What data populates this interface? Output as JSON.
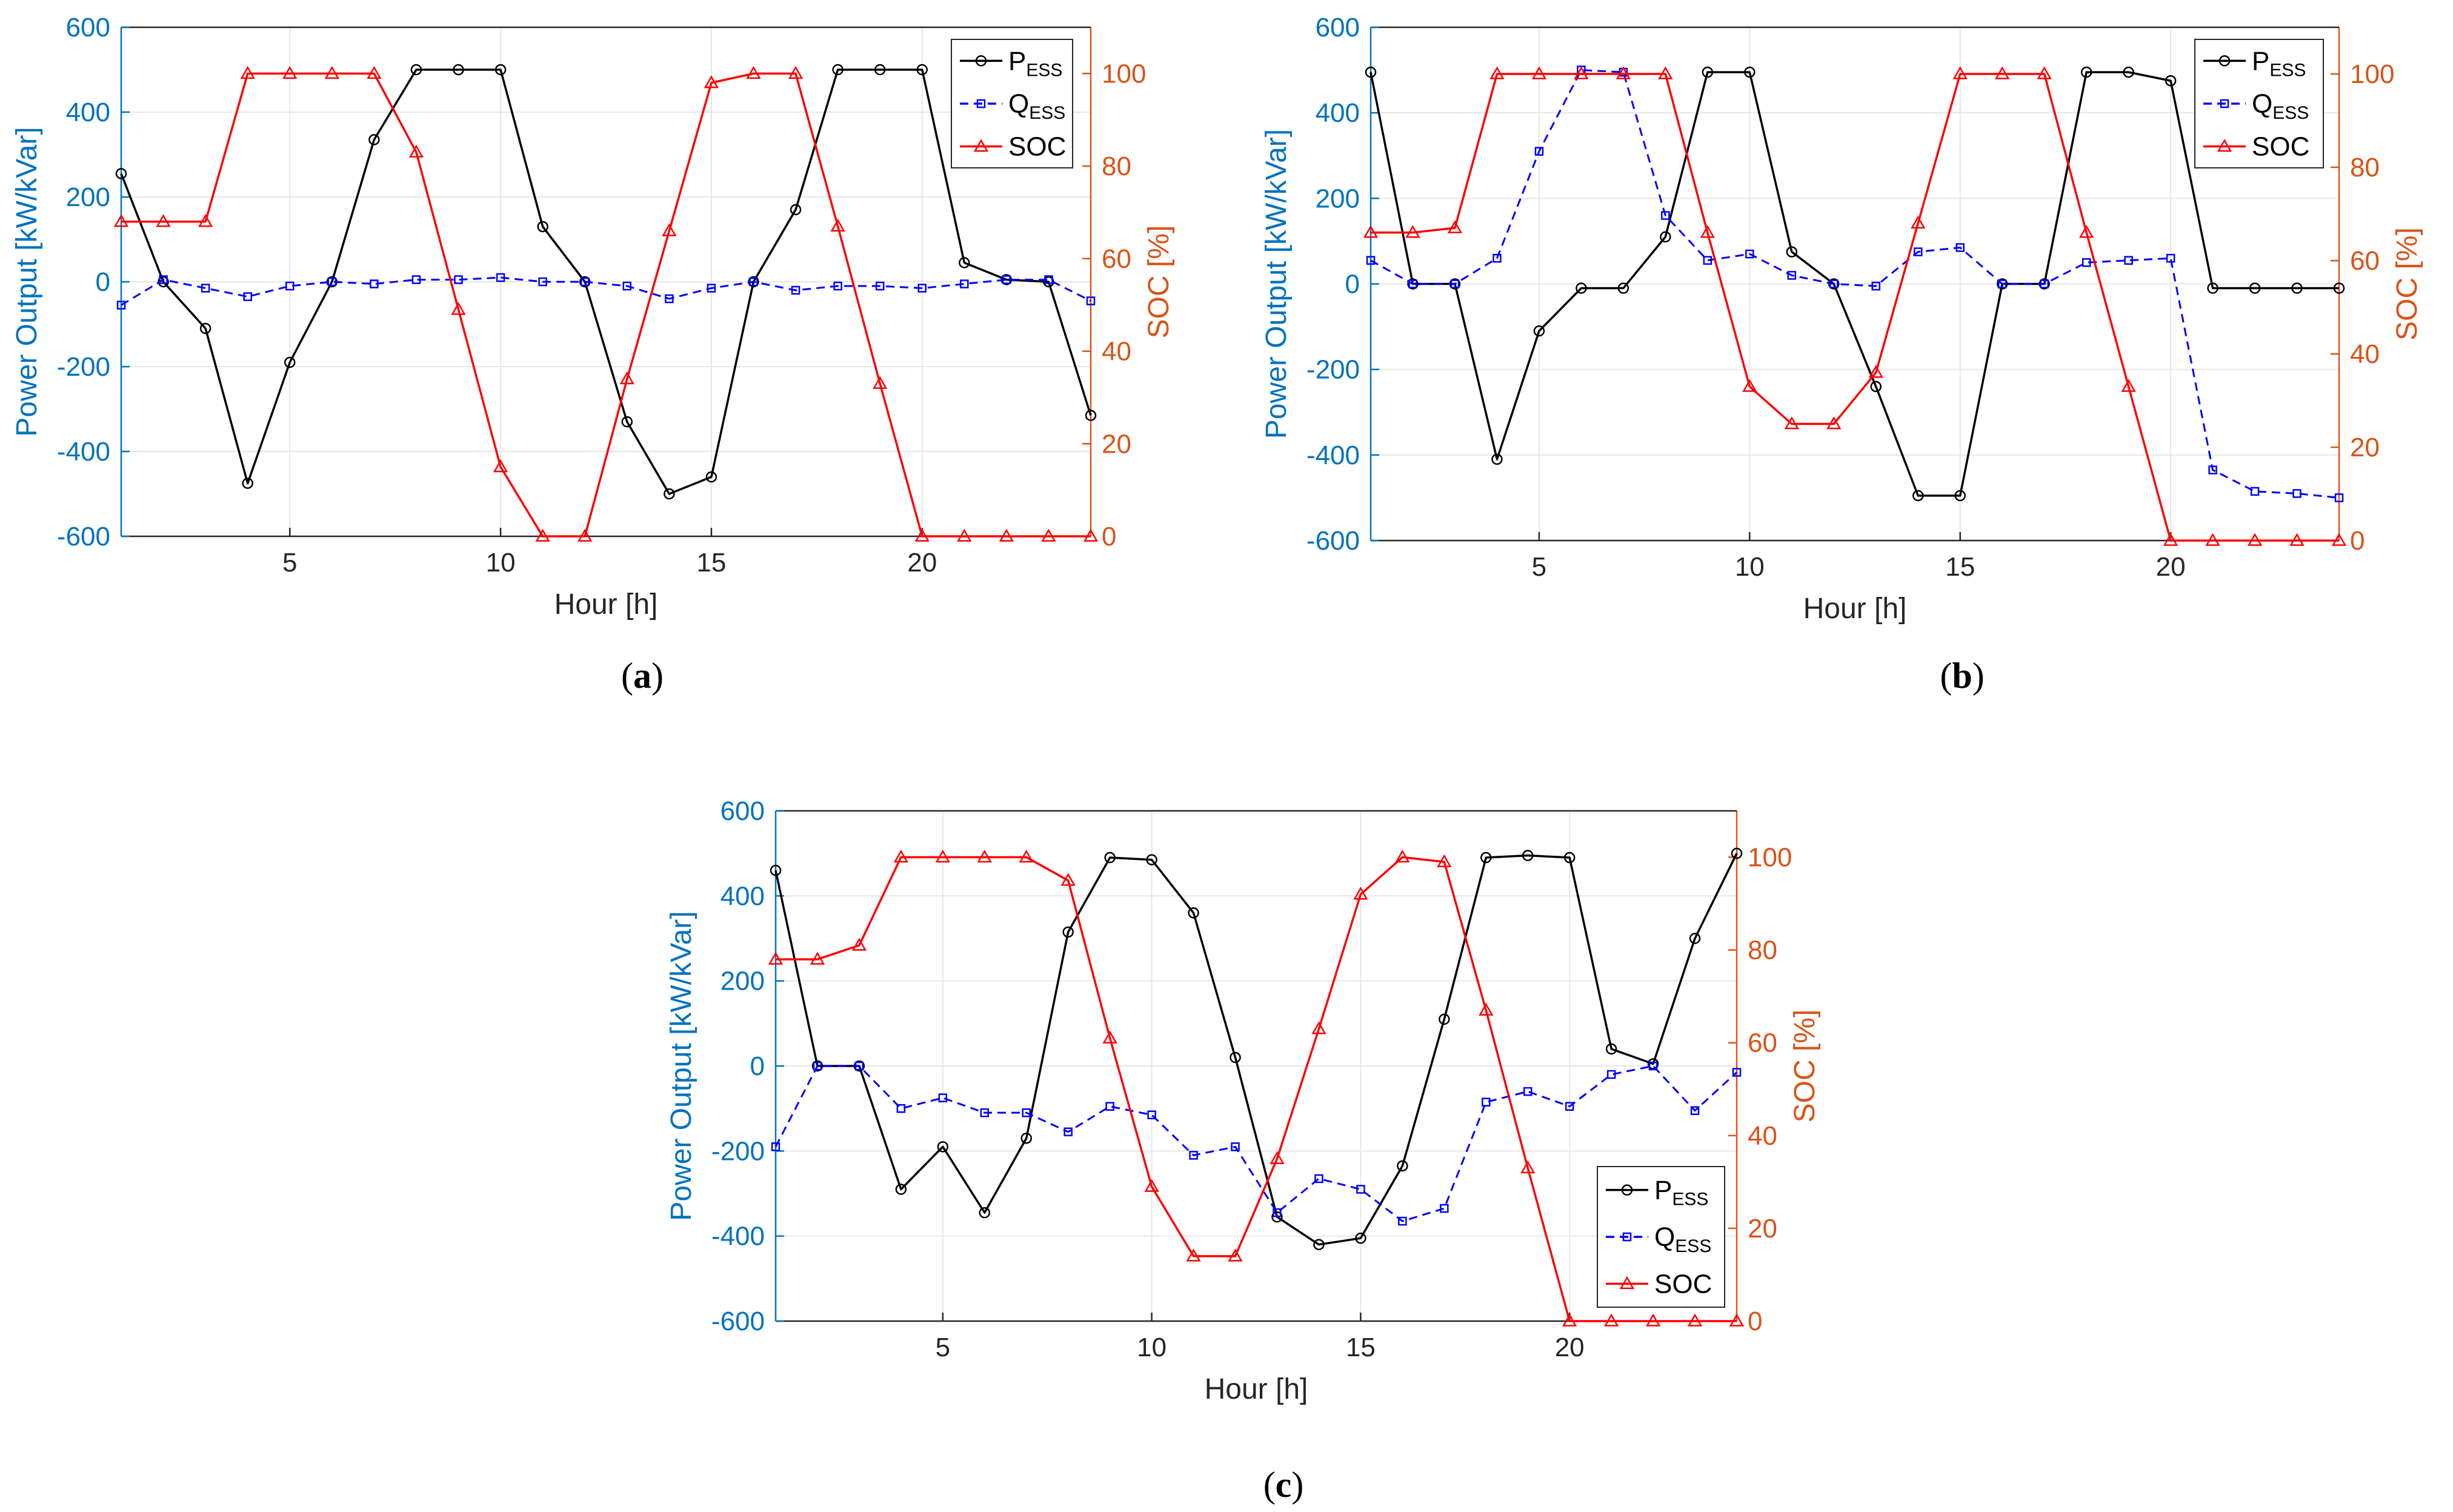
{
  "chart_data": [
    {
      "type": "line",
      "caption": "a",
      "xlabel": "Hour [h]",
      "ylabel_left": "Power Output [kW/kVar]",
      "ylabel_right": "SOC [%]",
      "xlim": [
        1,
        24
      ],
      "ylim_left": [
        -600,
        600
      ],
      "ylim_right": [
        0,
        110
      ],
      "x_ticks": [
        5,
        10,
        15,
        20
      ],
      "y_ticks_left": [
        -600,
        -400,
        -200,
        0,
        200,
        400,
        600
      ],
      "y_ticks_right": [
        0,
        20,
        40,
        60,
        80,
        100
      ],
      "grid": true,
      "legend_position": "top-right",
      "x": [
        1,
        2,
        3,
        4,
        5,
        6,
        7,
        8,
        9,
        10,
        11,
        12,
        13,
        14,
        15,
        16,
        17,
        18,
        19,
        20,
        21,
        22,
        23,
        24
      ],
      "series": [
        {
          "name": "P",
          "name_sub": "ESS",
          "axis": "left",
          "color": "#000000",
          "marker": "circle",
          "dash": "solid",
          "values": [
            255,
            0,
            -110,
            -475,
            -190,
            0,
            335,
            500,
            500,
            500,
            130,
            0,
            -330,
            -500,
            -460,
            0,
            170,
            500,
            500,
            500,
            45,
            5,
            0,
            -315
          ]
        },
        {
          "name": "Q",
          "name_sub": "ESS",
          "axis": "left",
          "color": "#0000FF",
          "marker": "square",
          "dash": "dashed",
          "values": [
            -55,
            5,
            -15,
            -35,
            -10,
            0,
            -5,
            5,
            5,
            10,
            0,
            0,
            -10,
            -40,
            -15,
            0,
            -20,
            -10,
            -10,
            -15,
            -5,
            5,
            5,
            -45
          ]
        },
        {
          "name": "SOC",
          "axis": "right",
          "color": "#FF0000",
          "marker": "triangle",
          "dash": "solid",
          "values": [
            68,
            68,
            68,
            100,
            100,
            100,
            100,
            83,
            49,
            15,
            0,
            0,
            34,
            66,
            98,
            100,
            100,
            67,
            33,
            0,
            0,
            0,
            0,
            0
          ]
        }
      ]
    },
    {
      "type": "line",
      "caption": "b",
      "xlabel": "Hour [h]",
      "ylabel_left": "Power Output [kW/kVar]",
      "ylabel_right": "SOC [%]",
      "xlim": [
        1,
        24
      ],
      "ylim_left": [
        -600,
        600
      ],
      "ylim_right": [
        0,
        110
      ],
      "x_ticks": [
        5,
        10,
        15,
        20
      ],
      "y_ticks_left": [
        -600,
        -400,
        -200,
        0,
        200,
        400,
        600
      ],
      "y_ticks_right": [
        0,
        20,
        40,
        60,
        80,
        100
      ],
      "grid": true,
      "legend_position": "top-right",
      "x": [
        1,
        2,
        3,
        4,
        5,
        6,
        7,
        8,
        9,
        10,
        11,
        12,
        13,
        14,
        15,
        16,
        17,
        18,
        19,
        20,
        21,
        22,
        23,
        24
      ],
      "series": [
        {
          "name": "P",
          "name_sub": "ESS",
          "axis": "left",
          "color": "#000000",
          "marker": "circle",
          "dash": "solid",
          "values": [
            495,
            0,
            0,
            -410,
            -110,
            -10,
            -10,
            110,
            495,
            495,
            75,
            0,
            -240,
            -495,
            -495,
            0,
            0,
            495,
            495,
            475,
            -10,
            -10,
            -10,
            -10
          ]
        },
        {
          "name": "Q",
          "name_sub": "ESS",
          "axis": "left",
          "color": "#0000FF",
          "marker": "square",
          "dash": "dashed",
          "values": [
            55,
            0,
            0,
            60,
            310,
            500,
            495,
            160,
            55,
            70,
            20,
            0,
            -5,
            75,
            85,
            0,
            0,
            50,
            55,
            60,
            -435,
            -485,
            -490,
            -500
          ]
        },
        {
          "name": "SOC",
          "axis": "right",
          "color": "#FF0000",
          "marker": "triangle",
          "dash": "solid",
          "values": [
            66,
            66,
            67,
            100,
            100,
            100,
            100,
            100,
            66,
            33,
            25,
            25,
            36,
            68,
            100,
            100,
            100,
            66,
            33,
            0,
            0,
            0,
            0,
            0
          ]
        }
      ]
    },
    {
      "type": "line",
      "caption": "c",
      "xlabel": "Hour [h]",
      "ylabel_left": "Power Output [kW/kVar]",
      "ylabel_right": "SOC [%]",
      "xlim": [
        1,
        24
      ],
      "ylim_left": [
        -600,
        600
      ],
      "ylim_right": [
        0,
        110
      ],
      "x_ticks": [
        5,
        10,
        15,
        20
      ],
      "y_ticks_left": [
        -600,
        -400,
        -200,
        0,
        200,
        400,
        600
      ],
      "y_ticks_right": [
        0,
        20,
        40,
        60,
        80,
        100
      ],
      "grid": true,
      "legend_position": "bottom-right",
      "x": [
        1,
        2,
        3,
        4,
        5,
        6,
        7,
        8,
        9,
        10,
        11,
        12,
        13,
        14,
        15,
        16,
        17,
        18,
        19,
        20,
        21,
        22,
        23,
        24
      ],
      "series": [
        {
          "name": "P",
          "name_sub": "ESS",
          "axis": "left",
          "color": "#000000",
          "marker": "circle",
          "dash": "solid",
          "values": [
            460,
            0,
            0,
            -290,
            -190,
            -345,
            -170,
            315,
            490,
            485,
            360,
            20,
            -355,
            -420,
            -405,
            -235,
            110,
            490,
            495,
            490,
            40,
            5,
            300,
            500
          ]
        },
        {
          "name": "Q",
          "name_sub": "ESS",
          "axis": "left",
          "color": "#0000FF",
          "marker": "square",
          "dash": "dashed",
          "values": [
            -190,
            0,
            0,
            -100,
            -75,
            -110,
            -110,
            -155,
            -95,
            -115,
            -210,
            -190,
            -345,
            -265,
            -290,
            -365,
            -335,
            -85,
            -60,
            -95,
            -20,
            0,
            -105,
            -15
          ]
        },
        {
          "name": "SOC",
          "axis": "right",
          "color": "#FF0000",
          "marker": "triangle",
          "dash": "solid",
          "values": [
            78,
            78,
            81,
            100,
            100,
            100,
            100,
            95,
            61,
            29,
            14,
            14,
            35,
            63,
            92,
            100,
            99,
            67,
            33,
            0,
            0,
            0,
            0,
            0
          ]
        }
      ]
    }
  ]
}
